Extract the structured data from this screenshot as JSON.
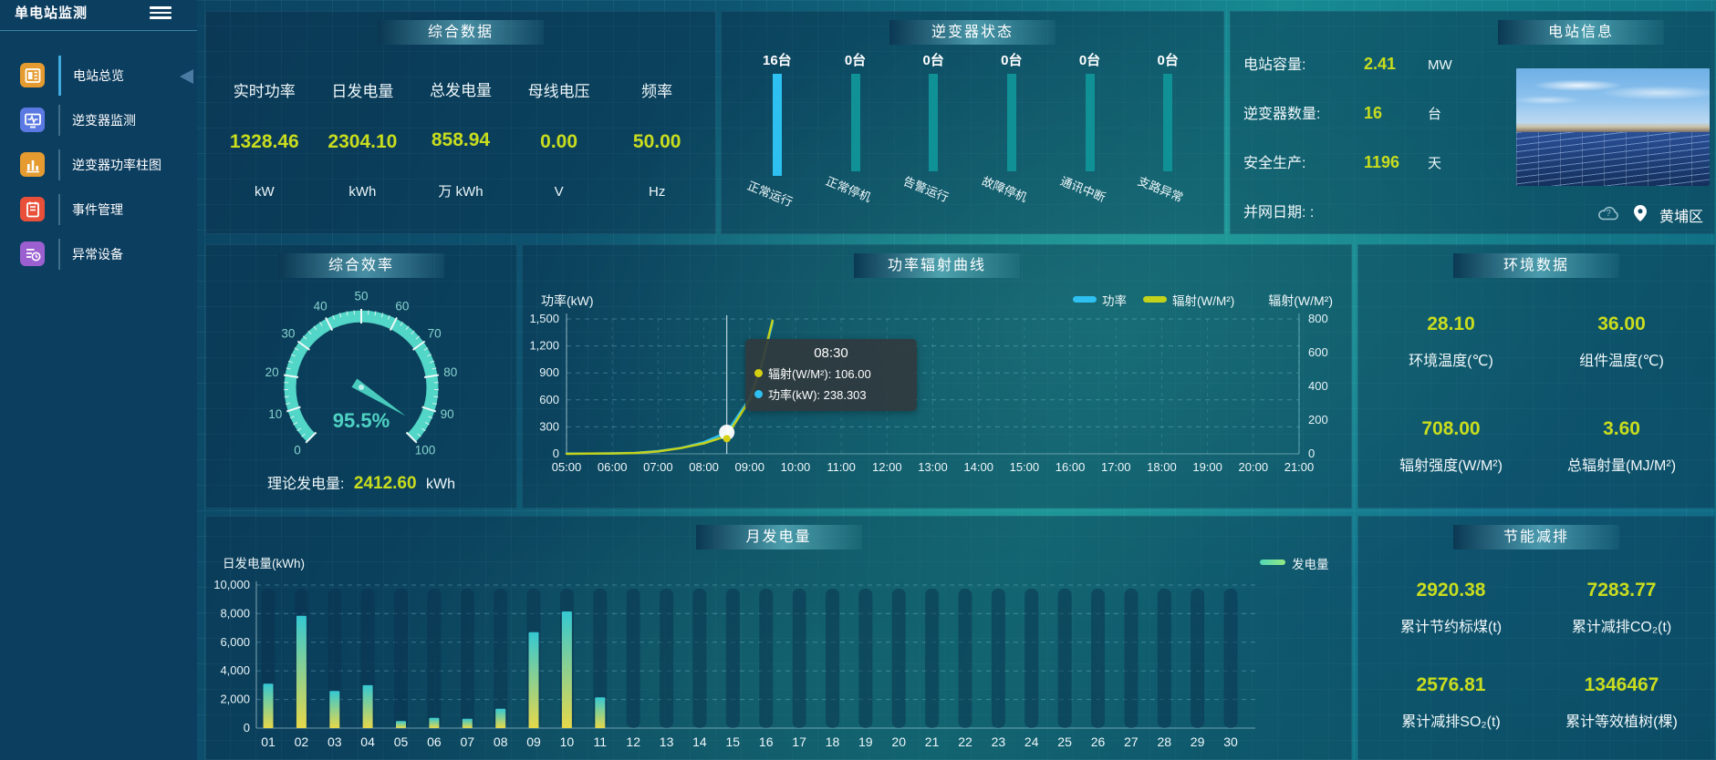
{
  "app": {
    "title": "单电站监测"
  },
  "sidebar": {
    "items": [
      {
        "label": "电站总览",
        "icon": "station-overview-icon",
        "color": "#e59b30",
        "active": true
      },
      {
        "label": "逆变器监测",
        "icon": "inverter-monitor-icon",
        "color": "#5b79e3",
        "active": false
      },
      {
        "label": "逆变器功率柱图",
        "icon": "inverter-power-bars-icon",
        "color": "#e59b30",
        "active": false
      },
      {
        "label": "事件管理",
        "icon": "event-management-icon",
        "color": "#e8503a",
        "active": false
      },
      {
        "label": "异常设备",
        "icon": "abnormal-device-icon",
        "color": "#9b5fd0",
        "active": false
      }
    ]
  },
  "summary": {
    "title": "综合数据",
    "metrics": [
      {
        "label": "实时功率",
        "value": "1328.46",
        "unit": "kW"
      },
      {
        "label": "日发电量",
        "value": "2304.10",
        "unit": "kWh"
      },
      {
        "label": "总发电量",
        "value": "858.94",
        "unit": "万 kWh"
      },
      {
        "label": "母线电压",
        "value": "0.00",
        "unit": "V"
      },
      {
        "label": "频率",
        "value": "50.00",
        "unit": "Hz"
      }
    ]
  },
  "inverter_status": {
    "title": "逆变器状态",
    "colors": {
      "highlight": "#2ec0f0",
      "normal": "#0f9195"
    },
    "items": [
      {
        "count": "16台",
        "label": "正常运行",
        "highlight": true
      },
      {
        "count": "0台",
        "label": "正常停机",
        "highlight": false
      },
      {
        "count": "0台",
        "label": "告警运行",
        "highlight": false
      },
      {
        "count": "0台",
        "label": "故障停机",
        "highlight": false
      },
      {
        "count": "0台",
        "label": "通讯中断",
        "highlight": false
      },
      {
        "count": "0台",
        "label": "支路异常",
        "highlight": false
      }
    ]
  },
  "station_info": {
    "title": "电站信息",
    "rows": [
      {
        "label": "电站容量:",
        "value": "2.41",
        "unit": "MW"
      },
      {
        "label": "逆变器数量:",
        "value": "16",
        "unit": "台"
      },
      {
        "label": "安全生产:",
        "value": "1196",
        "unit": "天"
      },
      {
        "label": "并网日期:  :",
        "value": "",
        "unit": ""
      }
    ],
    "location": "黄埔区"
  },
  "efficiency": {
    "title": "综合效率",
    "theoretical_label": "理论发电量:",
    "theoretical_value": "2412.60",
    "theoretical_unit": "kWh"
  },
  "environment": {
    "title": "环境数据",
    "metrics": [
      {
        "value": "28.10",
        "label": "环境温度(℃)"
      },
      {
        "value": "36.00",
        "label": "组件温度(℃)"
      },
      {
        "value": "708.00",
        "label": "辐射强度(W/M²)"
      },
      {
        "value": "3.60",
        "label": "总辐射量(MJ/M²)"
      }
    ]
  },
  "energy_saving": {
    "title": "节能减排",
    "metrics": [
      {
        "value": "2920.38",
        "label": "累计节约标煤(t)"
      },
      {
        "value": "7283.77",
        "label": "累计减排CO₂(t)"
      },
      {
        "value": "2576.81",
        "label": "累计减排SO₂(t)"
      },
      {
        "value": "1346467",
        "label": "累计等效植树(棵)"
      }
    ]
  },
  "chart_data": [
    {
      "id": "efficiency_gauge",
      "type": "gauge",
      "value": 95.5,
      "min": 0,
      "max": 100,
      "tick_interval": 10,
      "label": "95.5%",
      "color": "#52d6c7"
    },
    {
      "id": "power_radiation",
      "type": "line",
      "title": "功率辐射曲线",
      "x": [
        "05:00",
        "06:00",
        "07:00",
        "08:00",
        "09:00",
        "10:00",
        "11:00",
        "12:00",
        "13:00",
        "14:00",
        "15:00",
        "16:00",
        "17:00",
        "18:00",
        "19:00",
        "20:00",
        "21:00"
      ],
      "left_axis": {
        "label": "功率(kW)",
        "min": 0,
        "max": 1500,
        "step": 300
      },
      "right_axis": {
        "label": "辐射(W/M²)",
        "min": 0,
        "max": 800,
        "step": 200
      },
      "legend_position": "top-right",
      "series": [
        {
          "name": "功率",
          "color": "#2ec0f0",
          "axis": "left",
          "points": [
            [
              "05:00",
              2
            ],
            [
              "05:30",
              3
            ],
            [
              "06:00",
              5
            ],
            [
              "06:30",
              10
            ],
            [
              "07:00",
              30
            ],
            [
              "07:30",
              65
            ],
            [
              "08:00",
              130
            ],
            [
              "08:30",
              238.303
            ],
            [
              "09:00",
              620
            ],
            [
              "09:15",
              950
            ],
            [
              "09:30",
              1460
            ]
          ]
        },
        {
          "name": "辐射(W/M²)",
          "color": "#c3d21b",
          "axis": "right",
          "points": [
            [
              "05:00",
              0
            ],
            [
              "05:30",
              1
            ],
            [
              "06:00",
              2
            ],
            [
              "06:30",
              5
            ],
            [
              "07:00",
              14
            ],
            [
              "07:30",
              34
            ],
            [
              "08:00",
              62
            ],
            [
              "08:30",
              106
            ],
            [
              "09:00",
              320
            ],
            [
              "09:15",
              520
            ],
            [
              "09:30",
              790
            ]
          ]
        }
      ],
      "hover_x": "08:30",
      "tooltip": {
        "time": "08:30",
        "rows": [
          {
            "name": "辐射(W/M²)",
            "value": "106.00",
            "color": "#d4d012"
          },
          {
            "name": "功率(kW)",
            "value": "238.303",
            "color": "#2ec0f0"
          }
        ]
      }
    },
    {
      "id": "monthly_generation",
      "type": "bar",
      "title": "月发电量",
      "ylabel": "日发电量(kWh)",
      "ylim": [
        0,
        10000
      ],
      "ystep": 2000,
      "legend": "发电量",
      "categories": [
        "01",
        "02",
        "03",
        "04",
        "05",
        "06",
        "07",
        "08",
        "09",
        "10",
        "11",
        "12",
        "13",
        "14",
        "15",
        "16",
        "17",
        "18",
        "19",
        "20",
        "21",
        "22",
        "23",
        "24",
        "25",
        "26",
        "27",
        "28",
        "29",
        "30"
      ],
      "values": [
        3100,
        7850,
        2600,
        3000,
        500,
        720,
        650,
        1350,
        6700,
        8150,
        2150,
        0,
        0,
        0,
        0,
        0,
        0,
        0,
        0,
        0,
        0,
        0,
        0,
        0,
        0,
        0,
        0,
        0,
        0,
        0
      ]
    },
    {
      "id": "inverter_status_bars",
      "type": "bar",
      "categories": [
        "正常运行",
        "正常停机",
        "告警运行",
        "故障停机",
        "通讯中断",
        "支路异常"
      ],
      "values": [
        16,
        0,
        0,
        0,
        0,
        0
      ],
      "unit": "台"
    }
  ]
}
